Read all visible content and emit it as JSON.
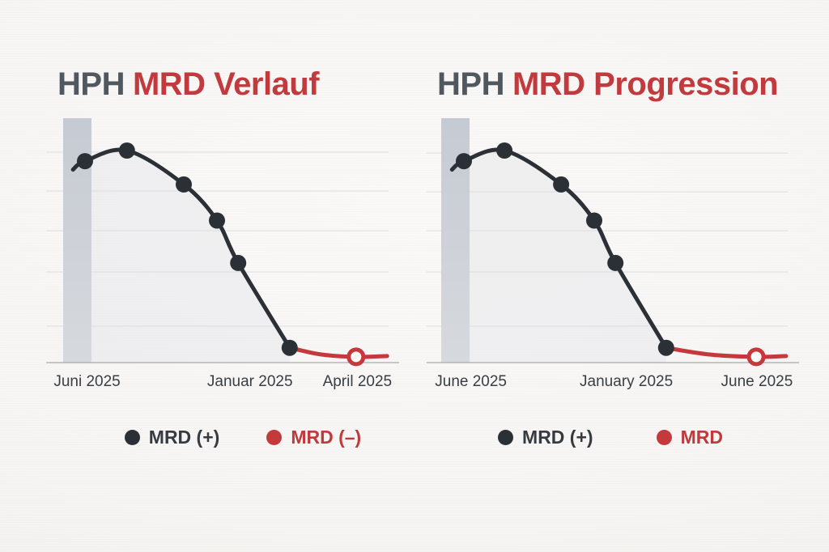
{
  "colors": {
    "ink_dark": "#2b3036",
    "accent_red": "#c23a3d",
    "title_gray": "#51575f",
    "grid_line": "#dcdde1",
    "bar_gray": "#c9cdd4",
    "baseline": "#a6aaae",
    "area_fill": "#e8e8eb",
    "background": "#f6f5f4"
  },
  "chart_data": [
    {
      "type": "line",
      "title": "HPH MRD Verlauf",
      "title_prefix": "HPH",
      "title_main": "MRD Verlauf",
      "xlabel": "",
      "ylabel": "",
      "ylim": [
        0,
        115
      ],
      "grid": true,
      "x_tick_labels": [
        "Juni 2025",
        "Januar 2025",
        "April 2025"
      ],
      "legend_position": "bottom",
      "legend": [
        {
          "label": "MRD (+)",
          "color": "#2b3036",
          "marker": "filled-circle"
        },
        {
          "label": "MRD (–)",
          "color": "#c4393c",
          "marker": "open-circle"
        }
      ],
      "series": [
        {
          "name": "MRD (+)",
          "color": "#2b3036",
          "marker": "filled-circle",
          "y_scale_note": "y = estimated % of peak burden (no y-axis shown); x = fraction of plot width",
          "tail_point": [
            0.076,
            91
          ],
          "points": [
            [
              0.11,
              95
            ],
            [
              0.229,
              100
            ],
            [
              0.39,
              84
            ],
            [
              0.484,
              67
            ],
            [
              0.544,
              47
            ],
            [
              0.69,
              7
            ]
          ]
        },
        {
          "name": "MRD (–)",
          "color": "#c4393c",
          "marker": "open-circle",
          "points": [
            [
              0.878,
              2.7
            ]
          ],
          "line_to_x": 0.966
        }
      ]
    },
    {
      "type": "line",
      "title": "HPH MRD Progression",
      "title_prefix": "HPH",
      "title_main": "MRD Progression",
      "xlabel": "",
      "ylabel": "",
      "ylim": [
        0,
        115
      ],
      "grid": true,
      "x_tick_labels": [
        "June 2025",
        "January 2025",
        "June 2025"
      ],
      "legend_position": "bottom",
      "legend": [
        {
          "label": "MRD (+)",
          "color": "#2b3036",
          "marker": "filled-circle"
        },
        {
          "label": "MRD",
          "color": "#c4393c",
          "marker": "filled-circle"
        }
      ],
      "series": [
        {
          "name": "MRD (+)",
          "color": "#2b3036",
          "marker": "filled-circle",
          "y_scale_note": "y = estimated % of peak burden (no y-axis shown); x = fraction of plot width",
          "tail_point": [
            0.068,
            91
          ],
          "points": [
            [
              0.1,
              95
            ],
            [
              0.209,
              100
            ],
            [
              0.361,
              84
            ],
            [
              0.45,
              67
            ],
            [
              0.507,
              47
            ],
            [
              0.643,
              7
            ]
          ]
        },
        {
          "name": "MRD",
          "color": "#c4393c",
          "marker": "open-circle",
          "points": [
            [
              0.885,
              2.7
            ]
          ],
          "line_to_x": 0.965
        }
      ]
    }
  ]
}
